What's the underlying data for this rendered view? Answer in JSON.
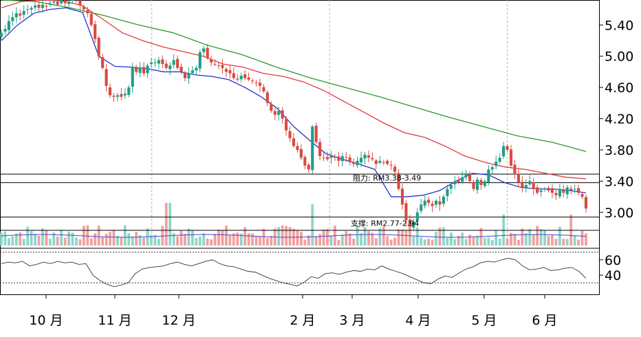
{
  "chart_data": {
    "type": "candlestick",
    "title": "",
    "colors": {
      "up": "#1e9e88",
      "down": "#d94a3f",
      "vol_up": "#8fd6c8",
      "vol_down": "#f2a0a0",
      "ma_blue": "#2233cc",
      "ma_red": "#e0393e",
      "ma_green": "#2b9a2b",
      "level_line": "#000000",
      "osc_line": "#333333"
    },
    "price_axis": {
      "ylim": [
        2.54,
        5.72
      ],
      "ticks": [
        "5.40",
        "5.00",
        "4.60",
        "4.20",
        "3.80",
        "3.40",
        "3.00"
      ],
      "tick_values": [
        5.4,
        5.0,
        4.6,
        4.2,
        3.8,
        3.4,
        3.0
      ]
    },
    "oscillator_axis": {
      "ylim": [
        15,
        75
      ],
      "ticks": [
        "60",
        "40"
      ],
      "tick_values": [
        60,
        40
      ],
      "dotted_levels": [
        70,
        30
      ]
    },
    "x_axis": {
      "labels": [
        "10 月",
        "11 月",
        "12 月",
        "2 月",
        "3 月",
        "4 月",
        "5 月",
        "6 月"
      ],
      "positions": [
        12,
        32,
        52,
        95,
        111,
        131,
        152,
        171
      ]
    },
    "levels": [
      {
        "name": "resistance",
        "label": "阻力: RM3.38-3.49",
        "low": 3.38,
        "high": 3.49
      },
      {
        "name": "support",
        "label": "支撑: RM2.77-2.94",
        "low": 2.77,
        "high": 2.94
      }
    ],
    "series": [
      {
        "name": "close",
        "values": [
          5.3,
          5.35,
          5.45,
          5.5,
          5.55,
          5.52,
          5.58,
          5.6,
          5.62,
          5.65,
          5.62,
          5.66,
          5.64,
          5.68,
          5.7,
          5.66,
          5.72,
          5.68,
          5.7,
          5.72,
          5.72,
          5.65,
          5.6,
          5.55,
          5.4,
          5.22,
          5.0,
          4.85,
          4.62,
          4.5,
          4.48,
          4.5,
          4.48,
          4.52,
          4.6,
          4.86,
          4.8,
          4.85,
          4.78,
          4.88,
          4.92,
          4.92,
          4.95,
          4.9,
          4.85,
          4.88,
          4.95,
          4.85,
          4.8,
          4.72,
          4.78,
          4.82,
          4.85,
          5.05,
          5.1,
          4.98,
          4.92,
          4.9,
          4.88,
          4.85,
          4.8,
          4.78,
          4.72,
          4.7,
          4.75,
          4.72,
          4.7,
          4.68,
          4.66,
          4.62,
          4.55,
          4.4,
          4.3,
          4.25,
          4.3,
          4.2,
          4.05,
          3.95,
          3.85,
          3.8,
          3.7,
          3.6,
          3.55,
          4.1,
          3.9,
          3.72,
          3.7,
          3.68,
          3.72,
          3.7,
          3.66,
          3.72,
          3.7,
          3.66,
          3.62,
          3.66,
          3.7,
          3.74,
          3.7,
          3.68,
          3.62,
          3.66,
          3.64,
          3.62,
          3.6,
          3.52,
          3.3,
          3.1,
          2.9,
          2.82,
          2.88,
          3.0,
          3.1,
          3.15,
          3.12,
          3.08,
          3.15,
          3.1,
          3.2,
          3.3,
          3.35,
          3.4,
          3.38,
          3.45,
          3.5,
          3.4,
          3.3,
          3.42,
          3.35,
          3.4,
          3.55,
          3.58,
          3.65,
          3.7,
          3.85,
          3.8,
          3.6,
          3.5,
          3.38,
          3.32,
          3.35,
          3.4,
          3.3,
          3.25,
          3.28,
          3.3,
          3.28,
          3.25,
          3.22,
          3.3,
          3.25,
          3.32,
          3.28,
          3.3,
          3.25,
          3.2,
          3.05
        ]
      },
      {
        "name": "ma_blue",
        "values": [
          5.2,
          5.4,
          5.55,
          5.6,
          5.62,
          5.56,
          5.0,
          4.87,
          4.86,
          4.84,
          4.8,
          4.8,
          4.76,
          4.74,
          4.7,
          4.6,
          4.48,
          4.33,
          4.1,
          3.92,
          3.75,
          3.68,
          3.62,
          3.55,
          3.2,
          3.2,
          3.22,
          3.28,
          3.4,
          3.5,
          3.48,
          3.38,
          3.32,
          3.3,
          3.3,
          3.28,
          3.25
        ]
      },
      {
        "name": "ma_red",
        "values": [
          5.62,
          5.7,
          5.72,
          5.71,
          5.65,
          5.48,
          5.3,
          5.2,
          5.12,
          5.06,
          5.0,
          4.9,
          4.86,
          4.78,
          4.74,
          4.67,
          4.56,
          4.42,
          4.28,
          4.14,
          4.02,
          3.96,
          3.85,
          3.72,
          3.64,
          3.58,
          3.55,
          3.5,
          3.45,
          3.43
        ]
      },
      {
        "name": "ma_green",
        "values": [
          5.72,
          5.7,
          5.62,
          5.52,
          5.4,
          5.3,
          5.14,
          5.02,
          4.86,
          4.72,
          4.6,
          4.48,
          4.35,
          4.22,
          4.1,
          3.98,
          3.9,
          3.78
        ]
      },
      {
        "name": "oscillator",
        "values": [
          55,
          57,
          56,
          58,
          52,
          54,
          57,
          55,
          58,
          56,
          57,
          54,
          55,
          40,
          33,
          28,
          25,
          27,
          30,
          42,
          48,
          50,
          51,
          52,
          55,
          57,
          54,
          52,
          55,
          58,
          60,
          55,
          52,
          51,
          48,
          45,
          44,
          40,
          36,
          33,
          30,
          28,
          26,
          31,
          38,
          36,
          42,
          43,
          41,
          44,
          46,
          45,
          48,
          47,
          52,
          48,
          45,
          42,
          38,
          34,
          30,
          29,
          35,
          39,
          37,
          43,
          48,
          51,
          56,
          58,
          57,
          60,
          62,
          60,
          52,
          47,
          48,
          50,
          46,
          47,
          49,
          50,
          45,
          36
        ]
      }
    ]
  }
}
